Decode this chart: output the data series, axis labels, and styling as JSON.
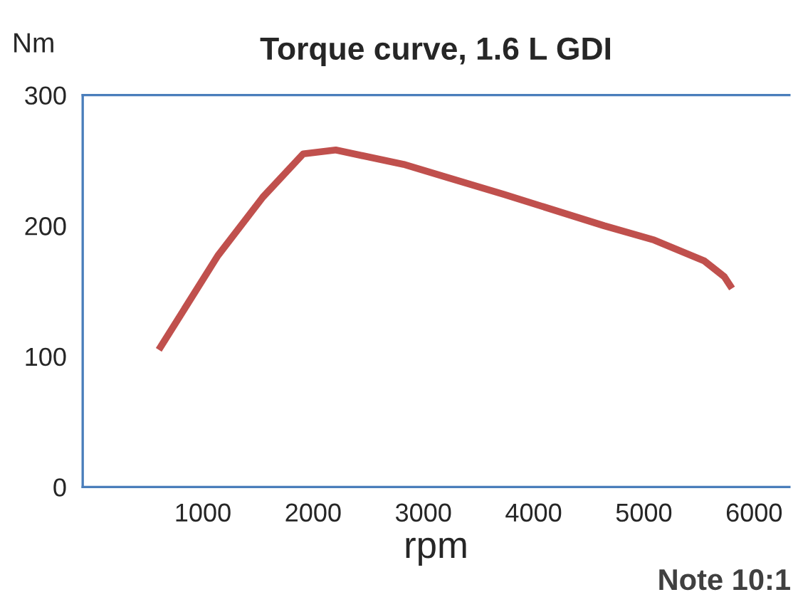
{
  "chart_data": {
    "type": "line",
    "title": "Torque curve, 1.6 L GDI",
    "ylabel": "Nm",
    "xlabel": "rpm",
    "annotations": [
      "Note 10:1"
    ],
    "x": [
      600,
      1135,
      1545,
      1910,
      2205,
      2820,
      3730,
      4640,
      5095,
      5550,
      5730,
      5800
    ],
    "series": [
      {
        "color": "#c0504d",
        "values": [
          105,
          177,
          222,
          255,
          258,
          247,
          224,
          200,
          189,
          173,
          161,
          152
        ]
      }
    ],
    "xlim": [
      -90,
      6320
    ],
    "xticks": [
      1000,
      2000,
      3000,
      4000,
      5000,
      6000
    ],
    "ylim": [
      0,
      300
    ],
    "yticks": [
      0,
      100,
      200,
      300
    ],
    "grid": false,
    "legend": false,
    "marker": "none",
    "line_style": "solid"
  }
}
